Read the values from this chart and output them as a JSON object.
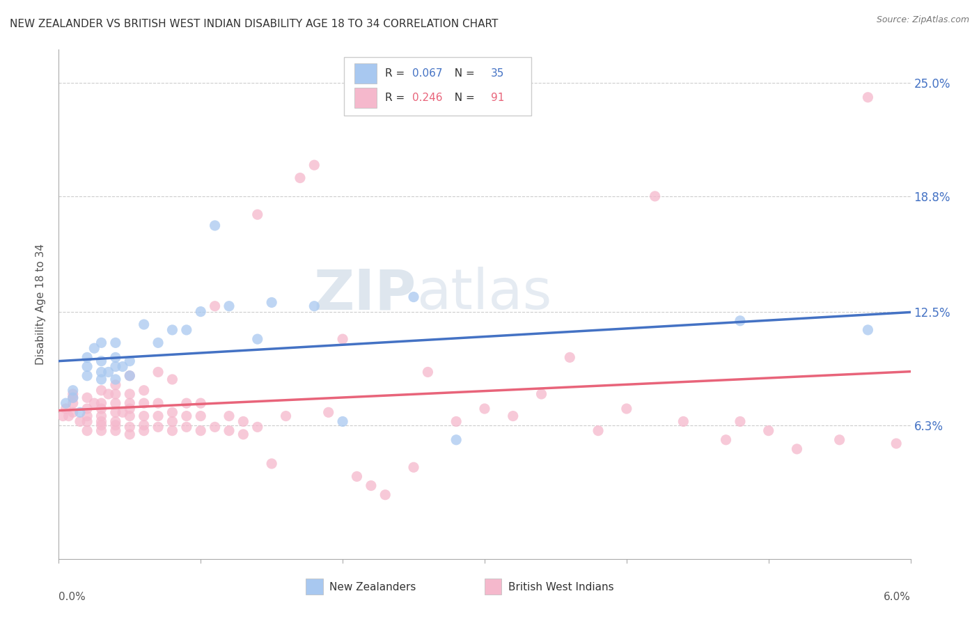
{
  "title": "NEW ZEALANDER VS BRITISH WEST INDIAN DISABILITY AGE 18 TO 34 CORRELATION CHART",
  "source": "Source: ZipAtlas.com",
  "ylabel": "Disability Age 18 to 34",
  "ytick_labels": [
    "6.3%",
    "12.5%",
    "18.8%",
    "25.0%"
  ],
  "ytick_values": [
    0.063,
    0.125,
    0.188,
    0.25
  ],
  "xmin": 0.0,
  "xmax": 0.06,
  "ymin": -0.01,
  "ymax": 0.268,
  "watermark_zip": "ZIP",
  "watermark_atlas": "atlas",
  "series": [
    {
      "name": "New Zealanders",
      "R": 0.067,
      "N": 35,
      "color": "#a8c8f0",
      "line_color": "#4472c4",
      "scatter_x": [
        0.0005,
        0.001,
        0.001,
        0.0015,
        0.002,
        0.002,
        0.002,
        0.0025,
        0.003,
        0.003,
        0.003,
        0.003,
        0.0035,
        0.004,
        0.004,
        0.004,
        0.004,
        0.0045,
        0.005,
        0.005,
        0.006,
        0.007,
        0.008,
        0.009,
        0.01,
        0.011,
        0.012,
        0.014,
        0.015,
        0.018,
        0.02,
        0.025,
        0.028,
        0.048,
        0.057
      ],
      "scatter_y": [
        0.075,
        0.078,
        0.082,
        0.07,
        0.09,
        0.095,
        0.1,
        0.105,
        0.088,
        0.092,
        0.098,
        0.108,
        0.092,
        0.088,
        0.095,
        0.1,
        0.108,
        0.095,
        0.09,
        0.098,
        0.118,
        0.108,
        0.115,
        0.115,
        0.125,
        0.172,
        0.128,
        0.11,
        0.13,
        0.128,
        0.065,
        0.133,
        0.055,
        0.12,
        0.115
      ]
    },
    {
      "name": "British West Indians",
      "R": 0.246,
      "N": 91,
      "color": "#f5b8cc",
      "line_color": "#e8647a",
      "scatter_x": [
        0.0003,
        0.0005,
        0.0007,
        0.001,
        0.001,
        0.001,
        0.001,
        0.0015,
        0.002,
        0.002,
        0.002,
        0.002,
        0.002,
        0.0025,
        0.003,
        0.003,
        0.003,
        0.003,
        0.003,
        0.003,
        0.003,
        0.0035,
        0.004,
        0.004,
        0.004,
        0.004,
        0.004,
        0.004,
        0.004,
        0.0045,
        0.005,
        0.005,
        0.005,
        0.005,
        0.005,
        0.005,
        0.005,
        0.006,
        0.006,
        0.006,
        0.006,
        0.006,
        0.007,
        0.007,
        0.007,
        0.007,
        0.008,
        0.008,
        0.008,
        0.008,
        0.009,
        0.009,
        0.009,
        0.01,
        0.01,
        0.01,
        0.011,
        0.011,
        0.012,
        0.012,
        0.013,
        0.013,
        0.014,
        0.014,
        0.015,
        0.016,
        0.017,
        0.018,
        0.019,
        0.02,
        0.021,
        0.022,
        0.023,
        0.025,
        0.026,
        0.028,
        0.03,
        0.032,
        0.034,
        0.036,
        0.038,
        0.04,
        0.042,
        0.044,
        0.047,
        0.048,
        0.05,
        0.052,
        0.055,
        0.057,
        0.059
      ],
      "scatter_y": [
        0.068,
        0.072,
        0.068,
        0.07,
        0.075,
        0.078,
        0.08,
        0.065,
        0.06,
        0.065,
        0.068,
        0.072,
        0.078,
        0.075,
        0.06,
        0.063,
        0.065,
        0.068,
        0.072,
        0.075,
        0.082,
        0.08,
        0.06,
        0.063,
        0.065,
        0.07,
        0.075,
        0.08,
        0.085,
        0.07,
        0.058,
        0.062,
        0.068,
        0.072,
        0.075,
        0.08,
        0.09,
        0.06,
        0.063,
        0.068,
        0.075,
        0.082,
        0.062,
        0.068,
        0.075,
        0.092,
        0.06,
        0.065,
        0.07,
        0.088,
        0.062,
        0.068,
        0.075,
        0.06,
        0.068,
        0.075,
        0.062,
        0.128,
        0.06,
        0.068,
        0.058,
        0.065,
        0.062,
        0.178,
        0.042,
        0.068,
        0.198,
        0.205,
        0.07,
        0.11,
        0.035,
        0.03,
        0.025,
        0.04,
        0.092,
        0.065,
        0.072,
        0.068,
        0.08,
        0.1,
        0.06,
        0.072,
        0.188,
        0.065,
        0.055,
        0.065,
        0.06,
        0.05,
        0.055,
        0.242,
        0.053
      ]
    }
  ]
}
